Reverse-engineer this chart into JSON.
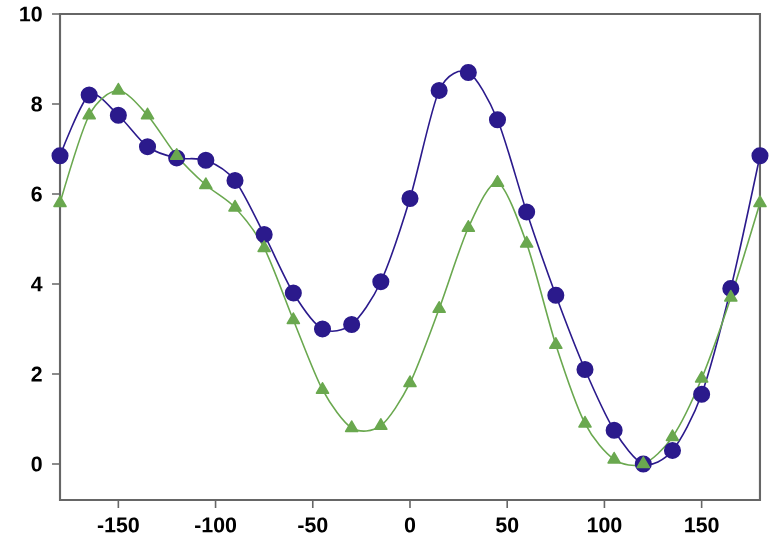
{
  "chart_data": {
    "type": "line",
    "x": [
      -180,
      -165,
      -150,
      -135,
      -120,
      -105,
      -90,
      -75,
      -60,
      -45,
      -30,
      -15,
      0,
      15,
      30,
      45,
      60,
      75,
      90,
      105,
      120,
      135,
      150,
      165,
      180
    ],
    "series": [
      {
        "color": "#2b1a8c",
        "marker": "circle",
        "values": [
          6.85,
          8.2,
          7.75,
          7.05,
          6.8,
          6.75,
          6.3,
          5.1,
          3.8,
          3.0,
          3.1,
          4.05,
          5.9,
          8.3,
          8.7,
          7.65,
          5.6,
          3.75,
          2.1,
          0.75,
          0.0,
          0.3,
          1.55,
          3.9,
          6.85
        ]
      },
      {
        "color": "#6aa84f",
        "marker": "triangle",
        "values": [
          5.8,
          7.75,
          8.3,
          7.75,
          6.85,
          6.2,
          5.7,
          4.8,
          3.2,
          1.65,
          0.8,
          0.85,
          1.8,
          3.45,
          5.25,
          6.25,
          4.9,
          2.65,
          0.9,
          0.1,
          0.0,
          0.6,
          1.9,
          3.7,
          5.8
        ]
      }
    ],
    "xlim": [
      -180,
      180
    ],
    "ylim": [
      -0.8,
      10
    ],
    "xticks": [
      -150,
      -100,
      -50,
      0,
      50,
      100,
      150
    ],
    "yticks": [
      0,
      2,
      4,
      6,
      8,
      10
    ],
    "grid": false
  }
}
